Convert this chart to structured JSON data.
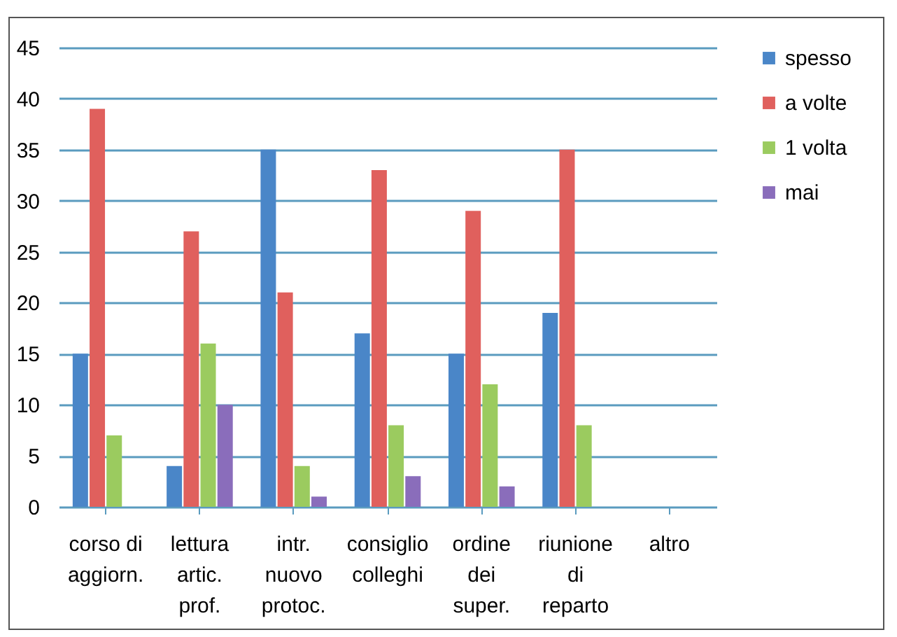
{
  "chart_data": {
    "type": "bar",
    "categories": [
      "corso di\naggiorn.",
      "lettura\nartic.\nprof.",
      "intr.\nnuovo\nprotoc.",
      "consiglio\ncolleghi",
      "ordine\ndei\nsuper.",
      "riunione\ndi\nreparto",
      "altro"
    ],
    "series": [
      {
        "name": "spesso",
        "color": "#4a86c8",
        "values": [
          15,
          4,
          35,
          17,
          15,
          19,
          null
        ]
      },
      {
        "name": "a volte",
        "color": "#e0605d",
        "values": [
          39,
          27,
          21,
          33,
          29,
          35,
          null
        ]
      },
      {
        "name": "1 volta",
        "color": "#9bcb5f",
        "values": [
          7,
          16,
          4,
          8,
          12,
          8,
          null
        ]
      },
      {
        "name": "mai",
        "color": "#8a6dbb",
        "values": [
          null,
          10,
          1,
          3,
          2,
          null,
          null
        ]
      }
    ],
    "ylim": [
      0,
      45
    ],
    "yticks": [
      0,
      5,
      10,
      15,
      20,
      25,
      30,
      35,
      40,
      45
    ],
    "grid": "y",
    "legend": "right"
  }
}
